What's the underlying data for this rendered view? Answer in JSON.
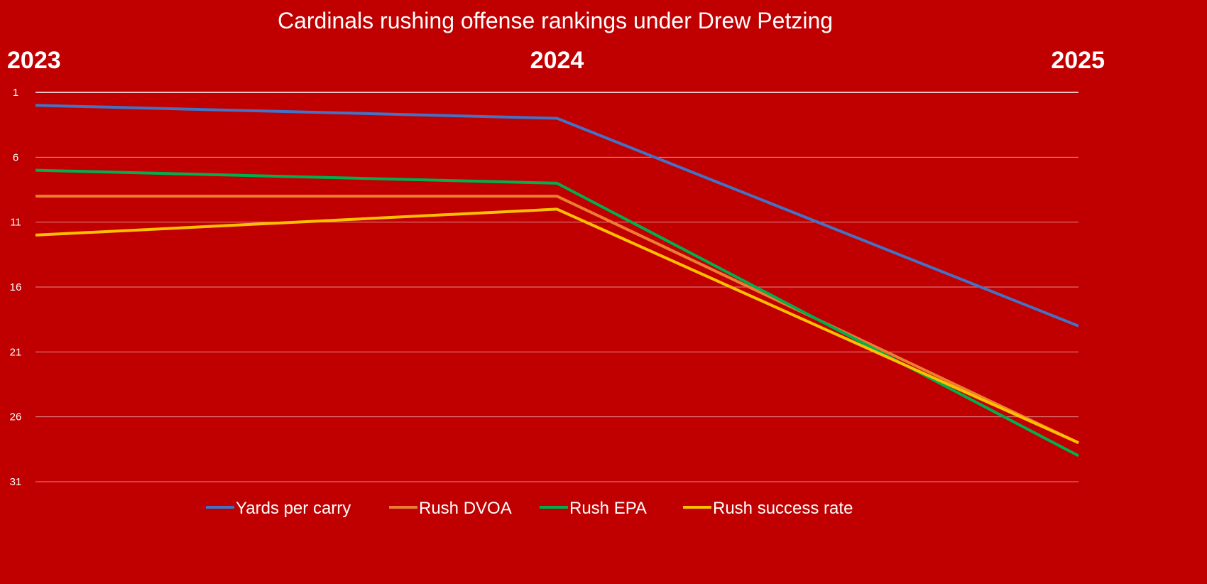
{
  "chart_data": {
    "type": "line",
    "title": "Cardinals rushing offense rankings under Drew Petzing",
    "x": [
      "2023",
      "2024",
      "2025"
    ],
    "xlabel": "",
    "ylabel": "",
    "y_inverted": true,
    "ylim": [
      1,
      31
    ],
    "yticks": [
      1,
      6,
      11,
      16,
      21,
      26,
      31
    ],
    "grid": true,
    "legend_position": "bottom",
    "series": [
      {
        "name": "Yards per carry",
        "color": "#4472C4",
        "values": [
          2,
          3,
          19
        ]
      },
      {
        "name": "Rush DVOA",
        "color": "#ED7D31",
        "values": [
          9,
          9,
          28
        ]
      },
      {
        "name": "Rush EPA",
        "color": "#00B050",
        "values": [
          7,
          8,
          29
        ]
      },
      {
        "name": "Rush success rate",
        "color": "#FFC000",
        "values": [
          12,
          10,
          28
        ]
      }
    ]
  }
}
